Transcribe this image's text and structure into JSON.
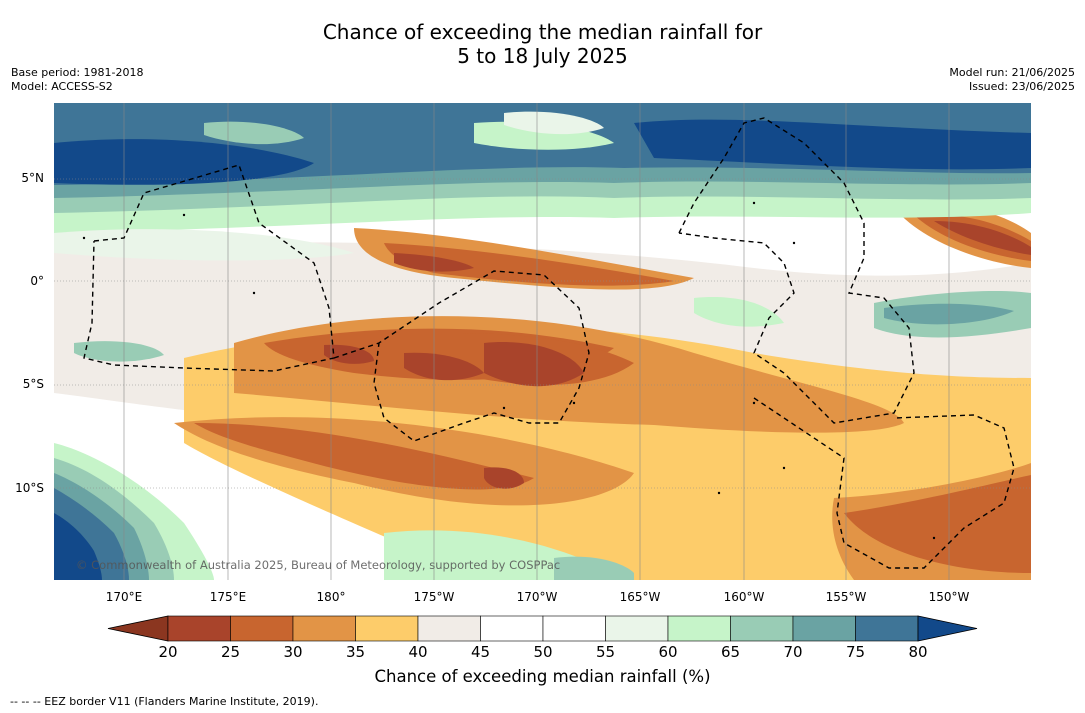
{
  "title": {
    "line1": "Chance of exceeding the median rainfall for",
    "line2": "5 to 18 July 2025"
  },
  "meta_left": {
    "base_period": "Base period: 1981-2018",
    "model": "Model: ACCESS-S2"
  },
  "meta_right": {
    "model_run": "Model run: 21/06/2025",
    "issued": "Issued: 23/06/2025"
  },
  "map": {
    "lat_labels": [
      "5°N",
      "0°",
      "5°S",
      "10°S"
    ],
    "lon_labels": [
      "170°E",
      "175°E",
      "180°",
      "175°W",
      "170°W",
      "165°W",
      "160°W",
      "155°W",
      "150°W"
    ],
    "copyright": "© Commonwealth of Australia 2025, Bureau of Meteorology, supported by COSPPac"
  },
  "colorbar": {
    "ticks": [
      "20",
      "25",
      "30",
      "35",
      "40",
      "45",
      "50",
      "55",
      "60",
      "65",
      "70",
      "75",
      "80"
    ],
    "label": "Chance of exceeding median rainfall (%)",
    "colors": [
      "#a9442b",
      "#c8652f",
      "#e29446",
      "#fdcc6a",
      "#f1ece7",
      "#ffffff",
      "#ffffff",
      "#eaf5e9",
      "#c6f4c9",
      "#99ccb5",
      "#6aa3a3",
      "#3f7597"
    ],
    "under_color": "#8b3620",
    "over_color": "#12498a"
  },
  "footer": {
    "eez": "--  --  -- EEZ border V11 (Flanders Marine Institute, 2019)."
  }
}
